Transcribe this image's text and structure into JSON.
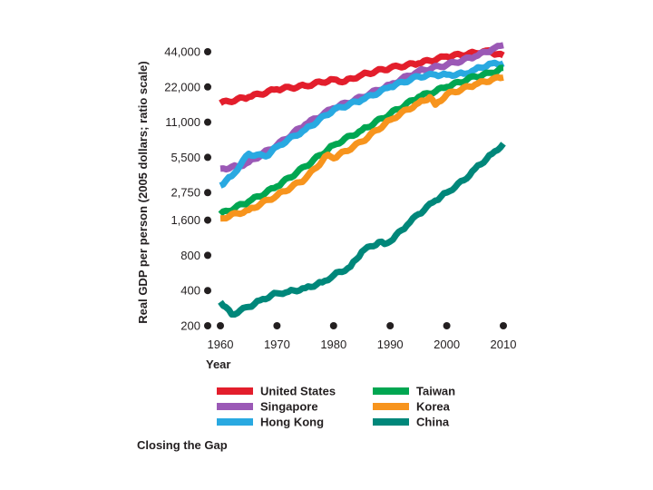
{
  "caption": "Closing the Gap",
  "chart_data": {
    "type": "line",
    "xlabel": "Year",
    "ylabel": "Real GDP per person (2005 dollars; ratio scale)",
    "y_scale": "log2",
    "xlim": [
      1960,
      2010
    ],
    "ylim": [
      200,
      44000
    ],
    "x_ticks": [
      1960,
      1970,
      1980,
      1990,
      2000,
      2010
    ],
    "y_ticks": [
      {
        "value": 200,
        "label": "200"
      },
      {
        "value": 400,
        "label": "400"
      },
      {
        "value": 800,
        "label": "800"
      },
      {
        "value": 1600,
        "label": "1,600"
      },
      {
        "value": 2750,
        "label": "2,750"
      },
      {
        "value": 5500,
        "label": "5,500"
      },
      {
        "value": 11000,
        "label": "11,000"
      },
      {
        "value": 22000,
        "label": "22,000"
      },
      {
        "value": 44000,
        "label": "44,000"
      }
    ],
    "grid": false,
    "legend_position": "bottom",
    "series": [
      {
        "name": "United States",
        "color": "#e31e2c",
        "x": [
          1960,
          1965,
          1970,
          1975,
          1980,
          1982,
          1985,
          1990,
          1995,
          2000,
          2005,
          2007,
          2009,
          2010
        ],
        "y": [
          16000,
          18000,
          21000,
          22500,
          25500,
          24500,
          28000,
          32000,
          35000,
          40000,
          43000,
          45000,
          42000,
          41000
        ]
      },
      {
        "name": "Singapore",
        "color": "#9b59b6",
        "x": [
          1960,
          1963,
          1965,
          1970,
          1975,
          1980,
          1985,
          1990,
          1995,
          2000,
          2005,
          2008,
          2010
        ],
        "y": [
          4400,
          4600,
          5000,
          7000,
          10500,
          14500,
          18000,
          23000,
          30000,
          34000,
          40000,
          46000,
          50000
        ]
      },
      {
        "name": "Hong Kong",
        "color": "#29a9e1",
        "x": [
          1960,
          1962,
          1965,
          1968,
          1970,
          1975,
          1980,
          1985,
          1990,
          1995,
          1998,
          2000,
          2003,
          2005,
          2008,
          2010
        ],
        "y": [
          3150,
          3800,
          5900,
          5600,
          6800,
          9500,
          14000,
          17000,
          22000,
          27000,
          28000,
          28000,
          28500,
          31000,
          35000,
          35000
        ]
      },
      {
        "name": "Taiwan",
        "color": "#00a651",
        "x": [
          1960,
          1965,
          1970,
          1975,
          1980,
          1985,
          1990,
          1995,
          2000,
          2005,
          2008,
          2010
        ],
        "y": [
          1800,
          2300,
          3100,
          4600,
          7000,
          9400,
          13000,
          18000,
          22000,
          27000,
          29000,
          32000
        ]
      },
      {
        "name": "Korea",
        "color": "#f7941d",
        "x": [
          1960,
          1965,
          1970,
          1975,
          1979,
          1980,
          1985,
          1990,
          1995,
          1997,
          1998,
          2000,
          2005,
          2008,
          2010
        ],
        "y": [
          1650,
          1950,
          2600,
          3600,
          5800,
          5400,
          7500,
          11500,
          16000,
          18000,
          15500,
          19000,
          23000,
          25500,
          26500
        ]
      },
      {
        "name": "China",
        "color": "#00877a",
        "x": [
          1960,
          1962,
          1965,
          1967,
          1970,
          1972,
          1975,
          1978,
          1980,
          1983,
          1985,
          1988,
          1989,
          1990,
          1993,
          1995,
          1998,
          2000,
          2003,
          2005,
          2008,
          2010
        ],
        "y": [
          320,
          250,
          290,
          330,
          380,
          390,
          420,
          470,
          540,
          640,
          860,
          1040,
          1000,
          1050,
          1450,
          1800,
          2350,
          2750,
          3500,
          4400,
          5900,
          7200
        ]
      }
    ]
  }
}
